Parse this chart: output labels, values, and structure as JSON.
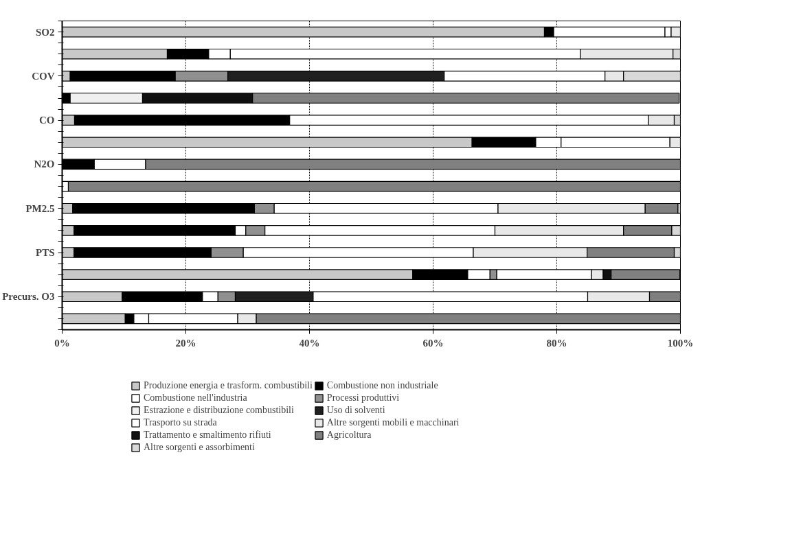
{
  "chart_data": {
    "type": "bar",
    "orientation": "horizontal",
    "stacked": true,
    "categories": [
      "SO2",
      null,
      "COV",
      null,
      "CO",
      null,
      "N2O",
      null,
      "PM2.5",
      null,
      "PTS",
      null,
      "Precurs. O3",
      null
    ],
    "xlim": [
      0,
      100
    ],
    "xticks": [
      {
        "value": 0,
        "label": "0%"
      },
      {
        "value": 20,
        "label": "20%"
      },
      {
        "value": 40,
        "label": "40%"
      },
      {
        "value": 60,
        "label": "60%"
      },
      {
        "value": 80,
        "label": "80%"
      },
      {
        "value": 100,
        "label": "100%"
      }
    ],
    "grid": "x",
    "legend": "bottom",
    "series": [
      {
        "name": "Produzione energia e trasform. combustibili",
        "color": "#c8c8c8",
        "values": [
          78,
          17,
          1.3,
          0,
          2,
          66.3,
          0,
          0,
          1.7,
          1.9,
          1.9,
          56.7,
          9.7,
          10.2
        ]
      },
      {
        "name": "Combustione non industriale",
        "color": "#000000",
        "values": [
          1.5,
          6.7,
          17,
          1.3,
          34.8,
          10.3,
          5.2,
          0,
          29.4,
          26.1,
          22.2,
          8.9,
          13,
          1.4
        ]
      },
      {
        "name": "Combustione nell'industria",
        "color": "#ffffff",
        "values": [
          18,
          3.5,
          0,
          0,
          0,
          4.1,
          0,
          0,
          0,
          1.7,
          0,
          3.6,
          2.5,
          2.4
        ]
      },
      {
        "name": "Processi produttivi",
        "color": "#909090",
        "values": [
          0,
          0,
          8.5,
          0,
          0,
          0,
          0,
          0,
          3.2,
          3.1,
          5.2,
          1.1,
          2.8,
          0
        ]
      },
      {
        "name": "Estrazione e distribuzione combustibili",
        "color": "#f0f0f0",
        "values": [
          0,
          0,
          0,
          11.7,
          0,
          0,
          0,
          0,
          0,
          0,
          0,
          0,
          0,
          0
        ]
      },
      {
        "name": "Uso di solventi",
        "color": "#202020",
        "values": [
          0,
          0,
          35,
          0,
          0,
          0,
          0,
          0,
          0,
          0,
          0,
          0,
          12.6,
          0
        ]
      },
      {
        "name": "Trasporto su strada",
        "color": "#ffffff",
        "values": [
          1,
          56.6,
          26,
          0,
          58,
          17.6,
          8.3,
          1,
          36.2,
          37.2,
          37.2,
          15.3,
          44.4,
          14.4
        ]
      },
      {
        "name": "Altre sorgenti mobili e macchinari",
        "color": "#e8e8e8",
        "values": [
          1.5,
          15,
          3,
          0,
          4.2,
          1.7,
          0,
          0,
          23.8,
          20.8,
          18.4,
          1.9,
          10,
          3
        ]
      },
      {
        "name": "Trattamento e smaltimento rifiuti",
        "color": "#101010",
        "values": [
          0,
          0,
          0,
          17.8,
          0,
          0,
          0,
          0,
          0,
          0,
          0,
          1.3,
          0,
          0
        ]
      },
      {
        "name": "Agricoltura",
        "color": "#808080",
        "values": [
          0,
          0,
          0,
          69,
          0,
          0,
          86.5,
          99,
          5.3,
          7.8,
          14.1,
          11.1,
          5,
          68.6
        ]
      },
      {
        "name": "Altre sorgenti e assorbimenti",
        "color": "#d8d8d8",
        "values": [
          0,
          1.2,
          9.2,
          0,
          1,
          0,
          0,
          0,
          0.4,
          1.4,
          1,
          0,
          0,
          0
        ]
      }
    ]
  }
}
